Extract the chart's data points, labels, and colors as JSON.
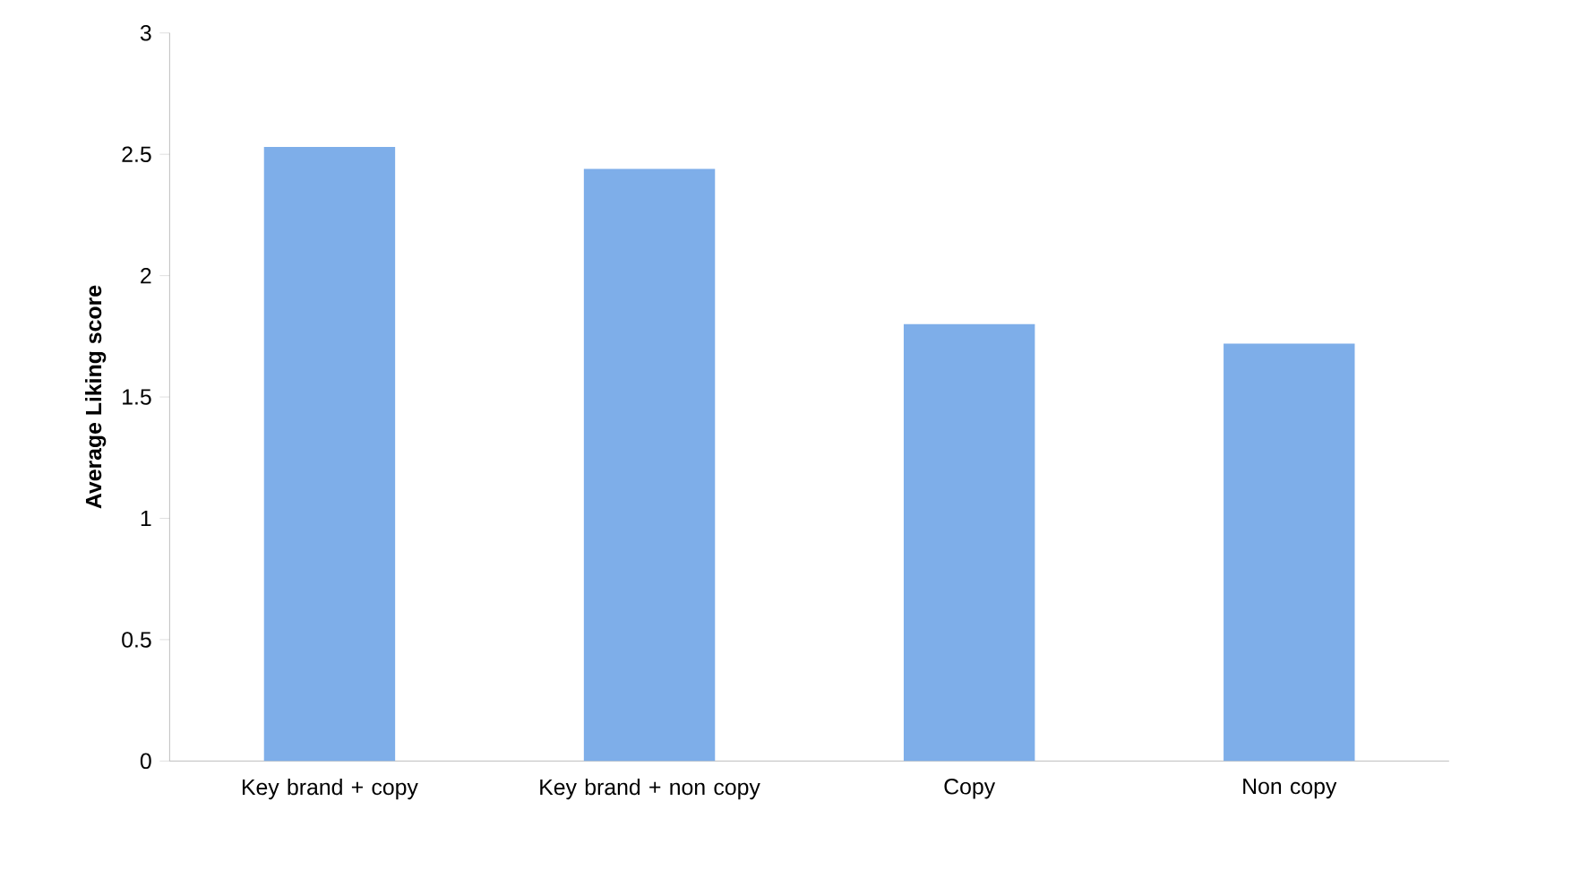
{
  "chart_data": {
    "type": "bar",
    "ylabel": "Average Liking score",
    "categories": [
      "Key brand + copy",
      "Key brand + non copy",
      "Copy",
      "Non copy"
    ],
    "values": [
      2.53,
      2.44,
      1.8,
      1.72
    ],
    "color": "#7eaee9",
    "ylim": [
      0,
      3
    ],
    "yticks": [
      0,
      0.5,
      1,
      1.5,
      2,
      2.5,
      3
    ],
    "grid": false
  }
}
